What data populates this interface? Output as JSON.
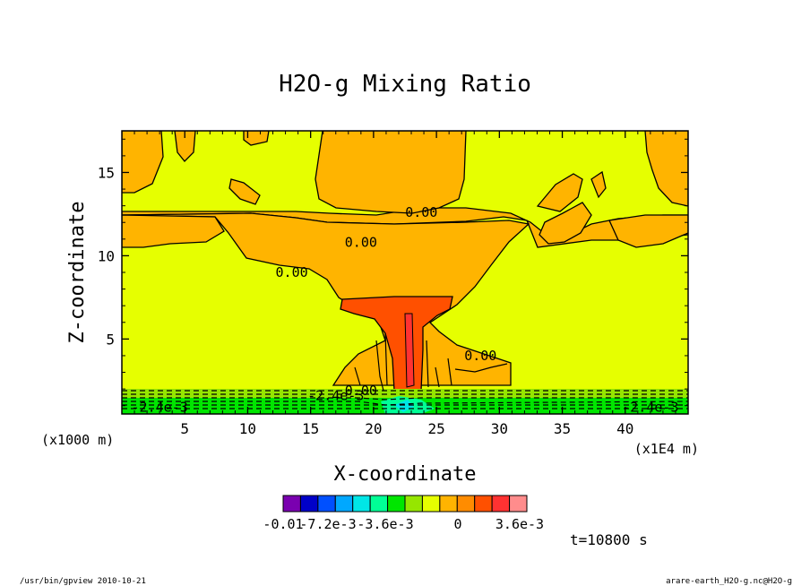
{
  "chart_data": {
    "type": "heatmap",
    "title": "H2O-g Mixing Ratio",
    "xlabel": "X-coordinate",
    "ylabel": "Z-coordinate",
    "x_unit_left": "(x1000 m)",
    "x_unit_right": "(x1E4 m)",
    "x_ticks": [
      5,
      10,
      15,
      20,
      25,
      30,
      35,
      40
    ],
    "y_ticks": [
      5,
      10,
      15
    ],
    "xlim": [
      0,
      45
    ],
    "ylim": [
      0.5,
      17.5
    ],
    "colorbar": {
      "colors": [
        "#7a00b0",
        "#0000c8",
        "#0050ff",
        "#00a8ff",
        "#00e6e6",
        "#00ff96",
        "#00e600",
        "#96e600",
        "#e6ff00",
        "#ffb400",
        "#ff8c00",
        "#ff5000",
        "#ff3232",
        "#ff8c8c"
      ],
      "tick_labels": [
        "-0.01",
        "-7.2e-3",
        "-3.6e-3",
        "0",
        "3.6e-3"
      ]
    },
    "contour_labels": [
      {
        "text": "0.00",
        "x": 23.8,
        "z": 12.6
      },
      {
        "text": "0.00",
        "x": 19.0,
        "z": 10.8
      },
      {
        "text": "0.00",
        "x": 13.5,
        "z": 9.0
      },
      {
        "text": "0.00",
        "x": 28.5,
        "z": 4.0
      },
      {
        "text": "-2.4e-3",
        "x": 3.0,
        "z": 0.9
      },
      {
        "text": "-2.4e-3",
        "x": 42.0,
        "z": 0.9
      },
      {
        "text": "-2.4e-3",
        "x": 17.0,
        "z": 1.6
      },
      {
        "text": "0.00",
        "x": 19.0,
        "z": 1.9
      }
    ],
    "time_label": "t=10800 s"
  },
  "footer": {
    "left": "/usr/bin/gpview  2010-10-21",
    "right": "arare-earth_H2O-g.nc@H2O-g"
  }
}
